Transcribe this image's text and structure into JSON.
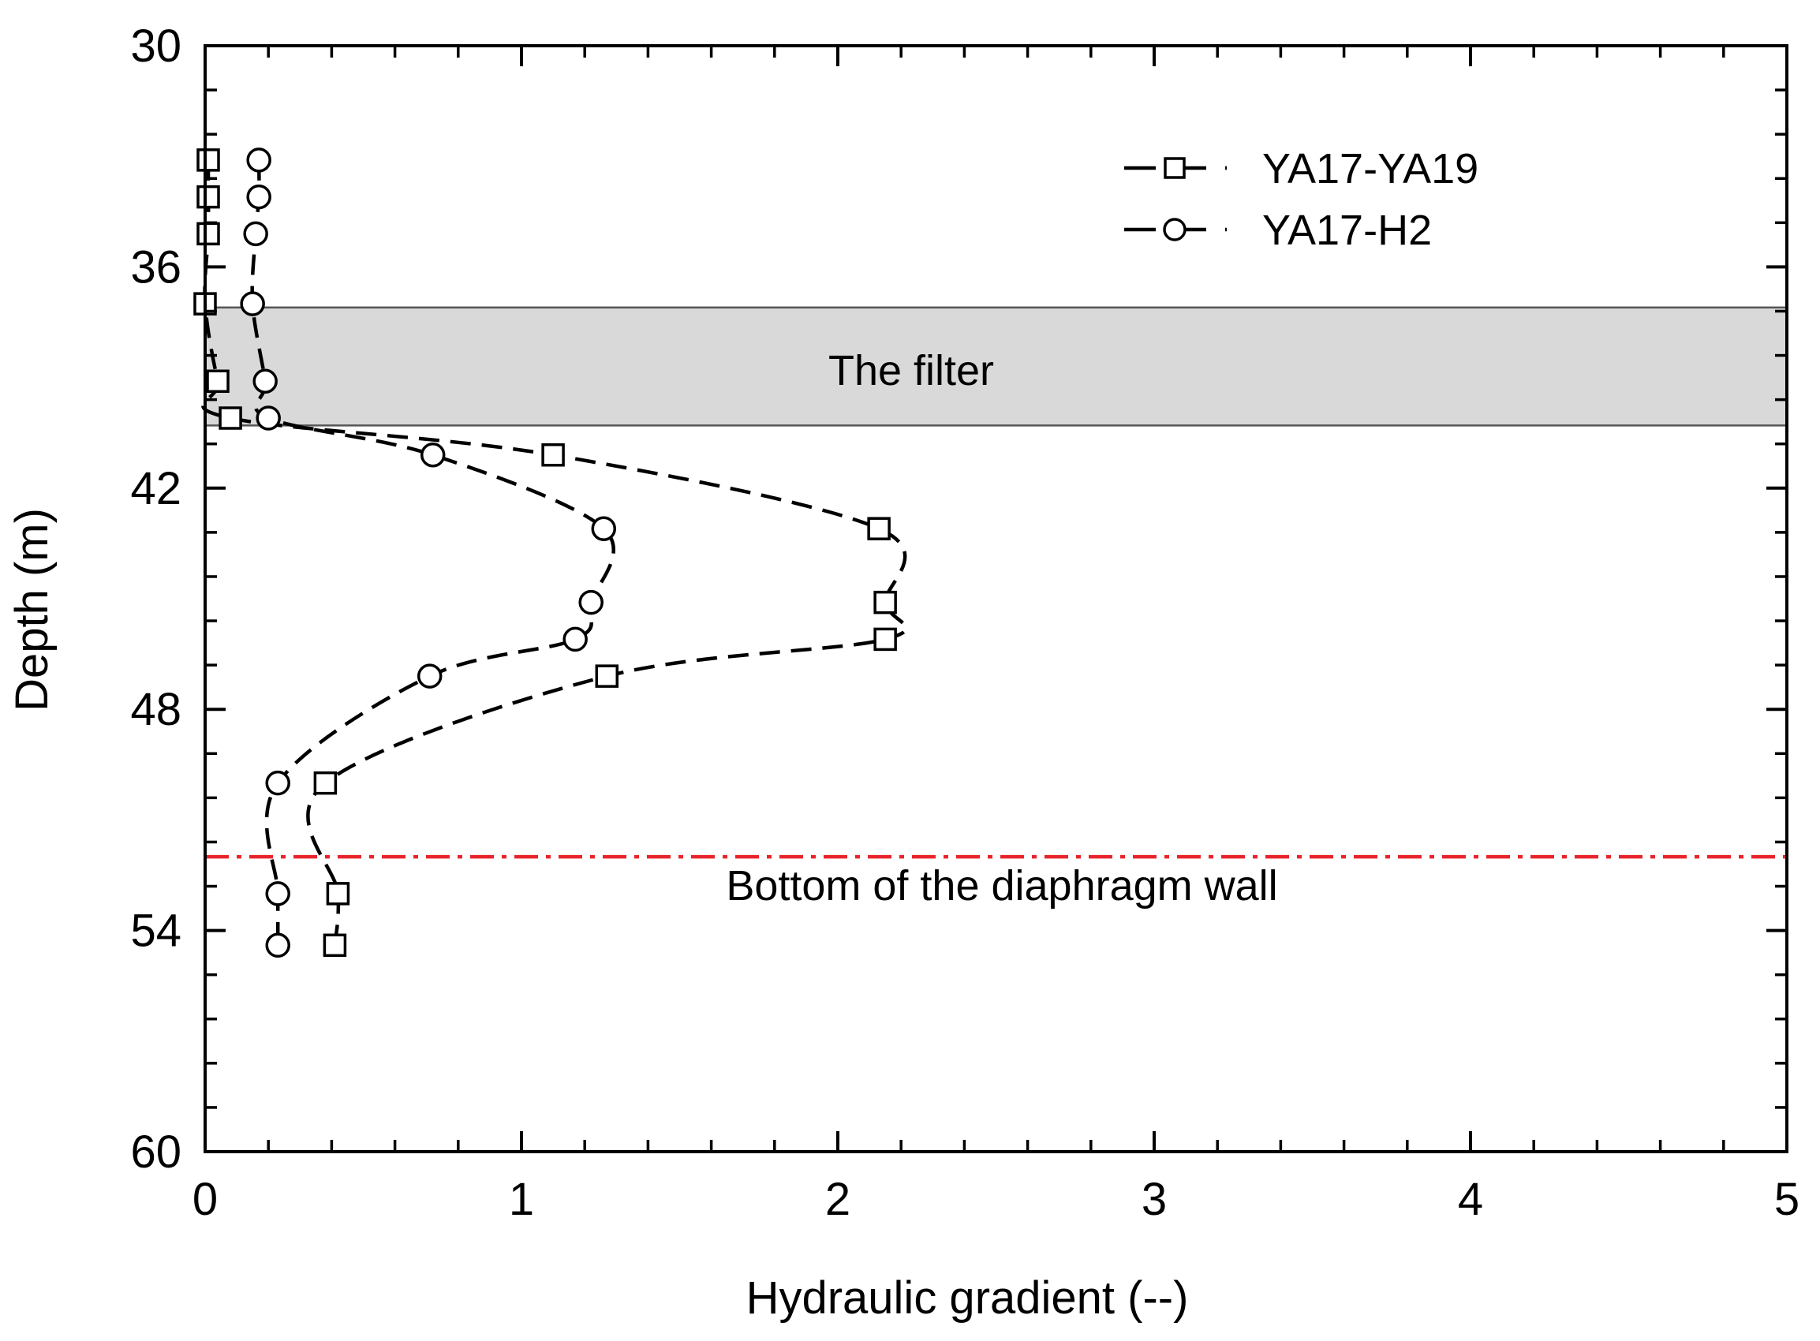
{
  "chart_data": {
    "type": "scatter",
    "xlabel": "Hydraulic gradient (--)",
    "ylabel": "Depth  (m)",
    "xlim": [
      0,
      5
    ],
    "ylim": [
      30,
      60
    ],
    "y_inverted": true,
    "x_ticks": [
      0,
      1,
      2,
      3,
      4,
      5
    ],
    "y_ticks": [
      30,
      36,
      42,
      48,
      54,
      60
    ],
    "x_tick_labels": [
      "0",
      "1",
      "2",
      "3",
      "4",
      "5"
    ],
    "y_tick_labels": [
      "30",
      "36",
      "42",
      "48",
      "54",
      "60"
    ],
    "x_minor_step": 0.2,
    "y_minor_step": 1.2,
    "grid": false,
    "legend_position": "top-right",
    "series": [
      {
        "name": "YA17-YA19",
        "marker": "square",
        "line": "dashed",
        "color": "#000000",
        "points": [
          {
            "x": 0.01,
            "y": 33.1
          },
          {
            "x": 0.01,
            "y": 34.1
          },
          {
            "x": 0.01,
            "y": 35.1
          },
          {
            "x": 0.0,
            "y": 37.0
          },
          {
            "x": 0.04,
            "y": 39.1
          },
          {
            "x": 0.08,
            "y": 40.1
          },
          {
            "x": 1.1,
            "y": 41.1
          },
          {
            "x": 2.13,
            "y": 43.1
          },
          {
            "x": 2.15,
            "y": 45.1
          },
          {
            "x": 2.15,
            "y": 46.1
          },
          {
            "x": 1.27,
            "y": 47.1
          },
          {
            "x": 0.38,
            "y": 50.0
          },
          {
            "x": 0.42,
            "y": 53.0
          },
          {
            "x": 0.41,
            "y": 54.4
          }
        ]
      },
      {
        "name": "YA17-H2",
        "marker": "circle",
        "line": "dashed",
        "color": "#000000",
        "points": [
          {
            "x": 0.17,
            "y": 33.1
          },
          {
            "x": 0.17,
            "y": 34.1
          },
          {
            "x": 0.16,
            "y": 35.1
          },
          {
            "x": 0.15,
            "y": 37.0
          },
          {
            "x": 0.19,
            "y": 39.1
          },
          {
            "x": 0.2,
            "y": 40.1
          },
          {
            "x": 0.72,
            "y": 41.1
          },
          {
            "x": 1.26,
            "y": 43.1
          },
          {
            "x": 1.22,
            "y": 45.1
          },
          {
            "x": 1.17,
            "y": 46.1
          },
          {
            "x": 0.71,
            "y": 47.1
          },
          {
            "x": 0.23,
            "y": 50.0
          },
          {
            "x": 0.23,
            "y": 53.0
          },
          {
            "x": 0.23,
            "y": 54.4
          }
        ]
      }
    ],
    "filter_band": {
      "label": "The filter",
      "y_top": 37.1,
      "y_bottom": 40.3,
      "color": "#d9d9d9"
    },
    "wall_line": {
      "label": "Bottom of the diaphragm wall",
      "y": 52.0,
      "color": "#e8242b",
      "style": "dash-dot"
    }
  }
}
